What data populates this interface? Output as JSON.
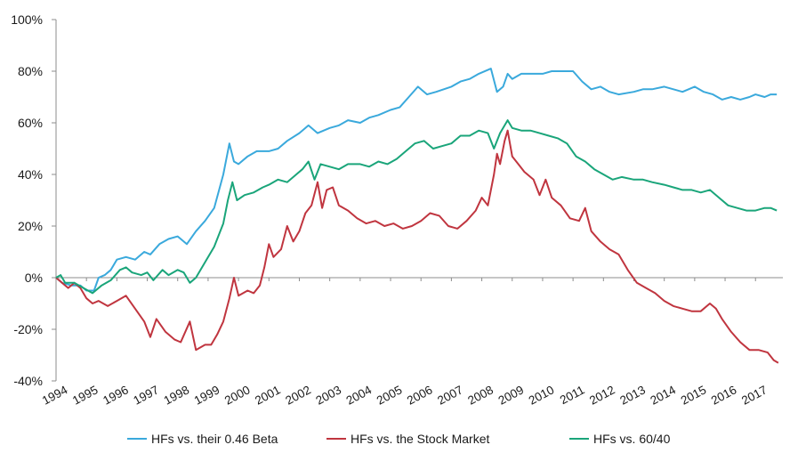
{
  "chart_data": {
    "type": "line",
    "title": "",
    "xlabel": "",
    "ylabel": "",
    "x_ticks": [
      "1994",
      "1995",
      "1996",
      "1997",
      "1998",
      "1999",
      "2000",
      "2001",
      "2002",
      "2003",
      "2004",
      "2005",
      "2006",
      "2007",
      "2008",
      "2009",
      "2010",
      "2011",
      "2012",
      "2013",
      "2014",
      "2015",
      "2016",
      "2017"
    ],
    "y_ticks": [
      "100%",
      "80%",
      "60%",
      "40%",
      "20%",
      "0%",
      "-20%",
      "-40%"
    ],
    "ylim": [
      -40,
      100
    ],
    "xlim": [
      1994.0,
      2017.9
    ],
    "y_unit": "%",
    "grid": false,
    "legend_position": "bottom",
    "series": [
      {
        "name": "HFs vs. their 0.46 Beta",
        "color": "#3aa9dc",
        "points": [
          [
            1994.0,
            0
          ],
          [
            1994.2,
            -2
          ],
          [
            1994.5,
            -3
          ],
          [
            1994.8,
            -3
          ],
          [
            1995.0,
            -5
          ],
          [
            1995.25,
            -5
          ],
          [
            1995.4,
            0
          ],
          [
            1995.6,
            1
          ],
          [
            1995.8,
            3
          ],
          [
            1996.0,
            7
          ],
          [
            1996.3,
            8
          ],
          [
            1996.6,
            7
          ],
          [
            1996.9,
            10
          ],
          [
            1997.1,
            9
          ],
          [
            1997.4,
            13
          ],
          [
            1997.7,
            15
          ],
          [
            1998.0,
            16
          ],
          [
            1998.3,
            13
          ],
          [
            1998.6,
            18
          ],
          [
            1998.9,
            22
          ],
          [
            1999.2,
            27
          ],
          [
            1999.5,
            40
          ],
          [
            1999.7,
            52
          ],
          [
            1999.85,
            45
          ],
          [
            2000.0,
            44
          ],
          [
            2000.3,
            47
          ],
          [
            2000.6,
            49
          ],
          [
            2001.0,
            49
          ],
          [
            2001.3,
            50
          ],
          [
            2001.6,
            53
          ],
          [
            2002.0,
            56
          ],
          [
            2002.3,
            59
          ],
          [
            2002.6,
            56
          ],
          [
            2003.0,
            58
          ],
          [
            2003.3,
            59
          ],
          [
            2003.6,
            61
          ],
          [
            2004.0,
            60
          ],
          [
            2004.3,
            62
          ],
          [
            2004.6,
            63
          ],
          [
            2005.0,
            65
          ],
          [
            2005.3,
            66
          ],
          [
            2005.6,
            70
          ],
          [
            2005.9,
            74
          ],
          [
            2006.2,
            71
          ],
          [
            2006.5,
            72
          ],
          [
            2007.0,
            74
          ],
          [
            2007.3,
            76
          ],
          [
            2007.6,
            77
          ],
          [
            2007.9,
            79
          ],
          [
            2008.3,
            81
          ],
          [
            2008.5,
            72
          ],
          [
            2008.7,
            74
          ],
          [
            2008.85,
            79
          ],
          [
            2009.0,
            77
          ],
          [
            2009.3,
            79
          ],
          [
            2009.6,
            79
          ],
          [
            2010.0,
            79
          ],
          [
            2010.3,
            80
          ],
          [
            2010.6,
            80
          ],
          [
            2011.0,
            80
          ],
          [
            2011.3,
            76
          ],
          [
            2011.6,
            73
          ],
          [
            2011.9,
            74
          ],
          [
            2012.2,
            72
          ],
          [
            2012.5,
            71
          ],
          [
            2013.0,
            72
          ],
          [
            2013.3,
            73
          ],
          [
            2013.6,
            73
          ],
          [
            2014.0,
            74
          ],
          [
            2014.3,
            73
          ],
          [
            2014.6,
            72
          ],
          [
            2015.0,
            74
          ],
          [
            2015.3,
            72
          ],
          [
            2015.6,
            71
          ],
          [
            2015.9,
            69
          ],
          [
            2016.2,
            70
          ],
          [
            2016.5,
            69
          ],
          [
            2016.8,
            70
          ],
          [
            2017.0,
            71
          ],
          [
            2017.3,
            70
          ],
          [
            2017.5,
            71
          ],
          [
            2017.7,
            71
          ]
        ]
      },
      {
        "name": "HFs vs. the Stock Market",
        "color": "#c0353f",
        "points": [
          [
            1994.0,
            0
          ],
          [
            1994.2,
            -2
          ],
          [
            1994.4,
            -4
          ],
          [
            1994.6,
            -2
          ],
          [
            1994.8,
            -4
          ],
          [
            1995.0,
            -8
          ],
          [
            1995.2,
            -10
          ],
          [
            1995.4,
            -9
          ],
          [
            1995.7,
            -11
          ],
          [
            1996.0,
            -9
          ],
          [
            1996.3,
            -7
          ],
          [
            1996.6,
            -12
          ],
          [
            1996.9,
            -17
          ],
          [
            1997.1,
            -23
          ],
          [
            1997.3,
            -16
          ],
          [
            1997.6,
            -21
          ],
          [
            1997.9,
            -24
          ],
          [
            1998.1,
            -25
          ],
          [
            1998.4,
            -17
          ],
          [
            1998.6,
            -28
          ],
          [
            1998.9,
            -26
          ],
          [
            1999.1,
            -26
          ],
          [
            1999.3,
            -22
          ],
          [
            1999.5,
            -17
          ],
          [
            1999.7,
            -8
          ],
          [
            1999.85,
            0
          ],
          [
            2000.0,
            -7
          ],
          [
            2000.3,
            -5
          ],
          [
            2000.5,
            -6
          ],
          [
            2000.7,
            -3
          ],
          [
            2000.85,
            4
          ],
          [
            2001.0,
            13
          ],
          [
            2001.15,
            8
          ],
          [
            2001.4,
            11
          ],
          [
            2001.6,
            20
          ],
          [
            2001.8,
            14
          ],
          [
            2002.0,
            18
          ],
          [
            2002.2,
            25
          ],
          [
            2002.4,
            28
          ],
          [
            2002.6,
            37
          ],
          [
            2002.75,
            27
          ],
          [
            2002.9,
            34
          ],
          [
            2003.1,
            35
          ],
          [
            2003.3,
            28
          ],
          [
            2003.6,
            26
          ],
          [
            2003.9,
            23
          ],
          [
            2004.2,
            21
          ],
          [
            2004.5,
            22
          ],
          [
            2004.8,
            20
          ],
          [
            2005.1,
            21
          ],
          [
            2005.4,
            19
          ],
          [
            2005.7,
            20
          ],
          [
            2006.0,
            22
          ],
          [
            2006.3,
            25
          ],
          [
            2006.6,
            24
          ],
          [
            2006.9,
            20
          ],
          [
            2007.2,
            19
          ],
          [
            2007.5,
            22
          ],
          [
            2007.8,
            26
          ],
          [
            2008.0,
            31
          ],
          [
            2008.2,
            28
          ],
          [
            2008.4,
            40
          ],
          [
            2008.5,
            48
          ],
          [
            2008.6,
            44
          ],
          [
            2008.75,
            53
          ],
          [
            2008.85,
            57
          ],
          [
            2009.0,
            47
          ],
          [
            2009.2,
            44
          ],
          [
            2009.4,
            41
          ],
          [
            2009.7,
            38
          ],
          [
            2009.9,
            32
          ],
          [
            2010.1,
            38
          ],
          [
            2010.3,
            31
          ],
          [
            2010.6,
            28
          ],
          [
            2010.9,
            23
          ],
          [
            2011.2,
            22
          ],
          [
            2011.4,
            27
          ],
          [
            2011.6,
            18
          ],
          [
            2011.9,
            14
          ],
          [
            2012.2,
            11
          ],
          [
            2012.5,
            9
          ],
          [
            2012.8,
            3
          ],
          [
            2013.1,
            -2
          ],
          [
            2013.4,
            -4
          ],
          [
            2013.7,
            -6
          ],
          [
            2014.0,
            -9
          ],
          [
            2014.3,
            -11
          ],
          [
            2014.6,
            -12
          ],
          [
            2014.9,
            -13
          ],
          [
            2015.2,
            -13
          ],
          [
            2015.5,
            -10
          ],
          [
            2015.7,
            -12
          ],
          [
            2015.9,
            -16
          ],
          [
            2016.2,
            -21
          ],
          [
            2016.5,
            -25
          ],
          [
            2016.8,
            -28
          ],
          [
            2017.1,
            -28
          ],
          [
            2017.4,
            -29
          ],
          [
            2017.6,
            -32
          ],
          [
            2017.75,
            -33
          ]
        ]
      },
      {
        "name": "HFs vs. 60/40",
        "color": "#1aa57a",
        "points": [
          [
            1994.0,
            0
          ],
          [
            1994.15,
            1
          ],
          [
            1994.3,
            -2
          ],
          [
            1994.6,
            -2
          ],
          [
            1994.9,
            -4
          ],
          [
            1995.2,
            -6
          ],
          [
            1995.5,
            -3
          ],
          [
            1995.8,
            -1
          ],
          [
            1996.1,
            3
          ],
          [
            1996.3,
            4
          ],
          [
            1996.5,
            2
          ],
          [
            1996.8,
            1
          ],
          [
            1997.0,
            2
          ],
          [
            1997.2,
            -1
          ],
          [
            1997.5,
            3
          ],
          [
            1997.7,
            1
          ],
          [
            1998.0,
            3
          ],
          [
            1998.2,
            2
          ],
          [
            1998.4,
            -2
          ],
          [
            1998.6,
            0
          ],
          [
            1998.9,
            6
          ],
          [
            1999.2,
            12
          ],
          [
            1999.5,
            21
          ],
          [
            1999.65,
            30
          ],
          [
            1999.8,
            37
          ],
          [
            1999.95,
            30
          ],
          [
            2000.2,
            32
          ],
          [
            2000.5,
            33
          ],
          [
            2000.8,
            35
          ],
          [
            2001.0,
            36
          ],
          [
            2001.3,
            38
          ],
          [
            2001.6,
            37
          ],
          [
            2001.9,
            40
          ],
          [
            2002.1,
            42
          ],
          [
            2002.3,
            45
          ],
          [
            2002.5,
            38
          ],
          [
            2002.7,
            44
          ],
          [
            2003.0,
            43
          ],
          [
            2003.3,
            42
          ],
          [
            2003.6,
            44
          ],
          [
            2004.0,
            44
          ],
          [
            2004.3,
            43
          ],
          [
            2004.6,
            45
          ],
          [
            2004.9,
            44
          ],
          [
            2005.2,
            46
          ],
          [
            2005.5,
            49
          ],
          [
            2005.8,
            52
          ],
          [
            2006.1,
            53
          ],
          [
            2006.4,
            50
          ],
          [
            2006.7,
            51
          ],
          [
            2007.0,
            52
          ],
          [
            2007.3,
            55
          ],
          [
            2007.6,
            55
          ],
          [
            2007.9,
            57
          ],
          [
            2008.2,
            56
          ],
          [
            2008.4,
            50
          ],
          [
            2008.6,
            56
          ],
          [
            2008.85,
            61
          ],
          [
            2009.0,
            58
          ],
          [
            2009.3,
            57
          ],
          [
            2009.6,
            57
          ],
          [
            2009.9,
            56
          ],
          [
            2010.2,
            55
          ],
          [
            2010.5,
            54
          ],
          [
            2010.8,
            52
          ],
          [
            2011.1,
            47
          ],
          [
            2011.4,
            45
          ],
          [
            2011.7,
            42
          ],
          [
            2012.0,
            40
          ],
          [
            2012.3,
            38
          ],
          [
            2012.6,
            39
          ],
          [
            2013.0,
            38
          ],
          [
            2013.3,
            38
          ],
          [
            2013.6,
            37
          ],
          [
            2014.0,
            36
          ],
          [
            2014.3,
            35
          ],
          [
            2014.6,
            34
          ],
          [
            2014.9,
            34
          ],
          [
            2015.2,
            33
          ],
          [
            2015.5,
            34
          ],
          [
            2015.8,
            31
          ],
          [
            2016.1,
            28
          ],
          [
            2016.4,
            27
          ],
          [
            2016.7,
            26
          ],
          [
            2017.0,
            26
          ],
          [
            2017.3,
            27
          ],
          [
            2017.5,
            27
          ],
          [
            2017.7,
            26
          ]
        ]
      }
    ]
  }
}
